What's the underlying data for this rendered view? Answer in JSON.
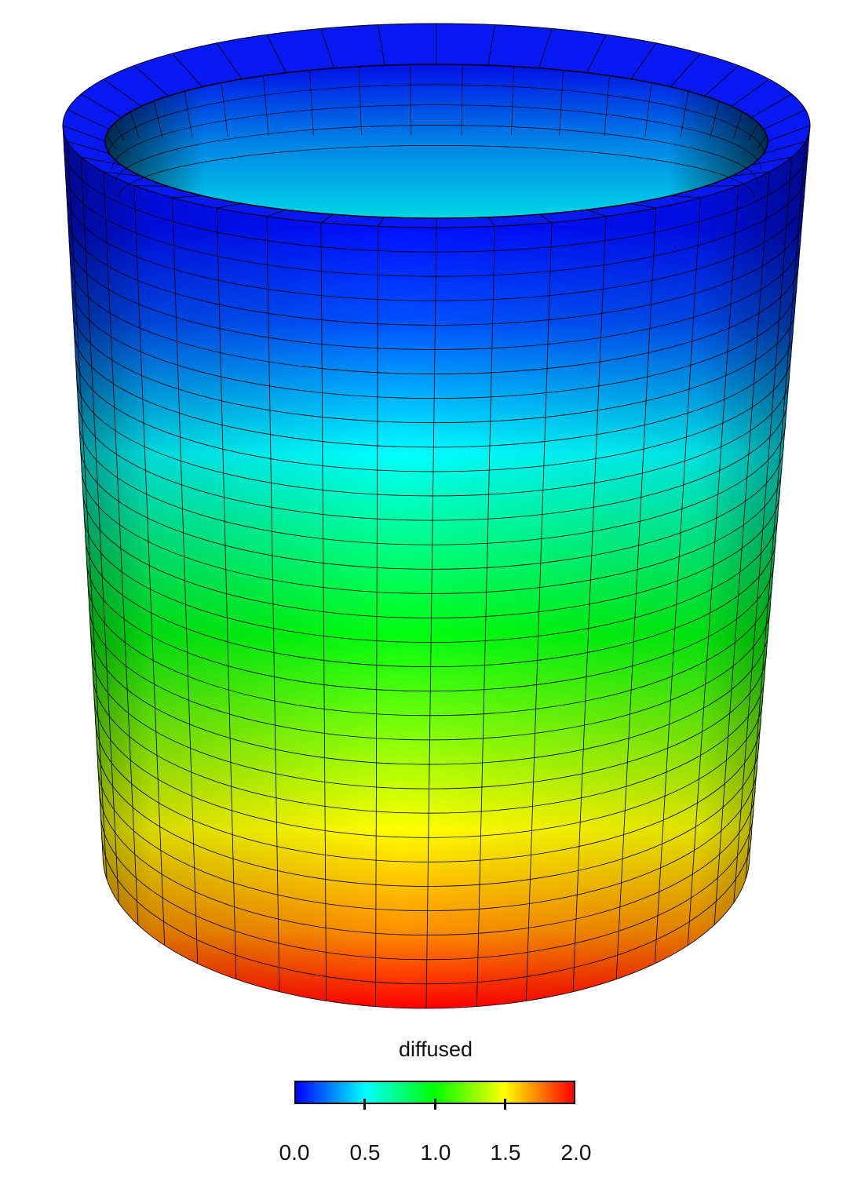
{
  "colorbar": {
    "title": "diffused",
    "range": [
      0.0,
      2.0
    ],
    "ticks": [
      "0.0",
      "0.5",
      "1.0",
      "1.5",
      "2.0"
    ],
    "colormap": [
      "#0000ff",
      "#00ffff",
      "#00ff00",
      "#ffff00",
      "#ff0000"
    ]
  }
}
